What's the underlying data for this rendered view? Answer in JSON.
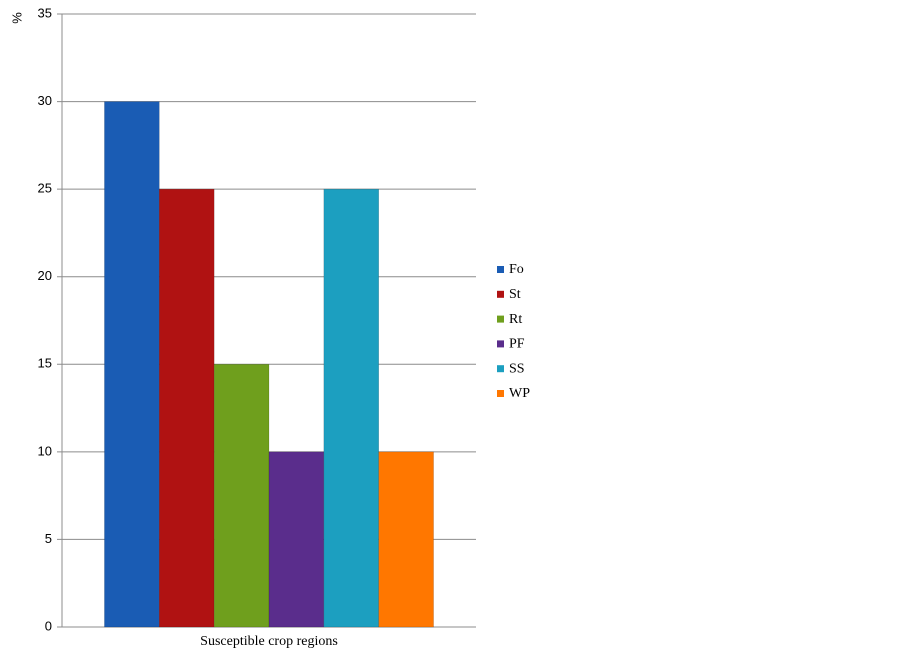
{
  "chart_data": {
    "type": "bar",
    "y_label": "%",
    "categories": [
      "Susceptible crop regions"
    ],
    "series": [
      {
        "name": "Fo",
        "color": "#1a5cb4",
        "values": [
          30
        ]
      },
      {
        "name": "St",
        "color": "#b01212",
        "values": [
          25
        ]
      },
      {
        "name": "Rt",
        "color": "#6f9f1d",
        "values": [
          15
        ]
      },
      {
        "name": "PF",
        "color": "#5a2d8c",
        "values": [
          10
        ]
      },
      {
        "name": "SS",
        "color": "#1c9fc0",
        "values": [
          25
        ]
      },
      {
        "name": "WP",
        "color": "#ff7700",
        "values": [
          10
        ]
      }
    ],
    "ylim": [
      0,
      35
    ],
    "yticks": [
      0,
      5,
      10,
      15,
      20,
      25,
      30,
      35
    ],
    "grid": true,
    "legend": "right"
  }
}
